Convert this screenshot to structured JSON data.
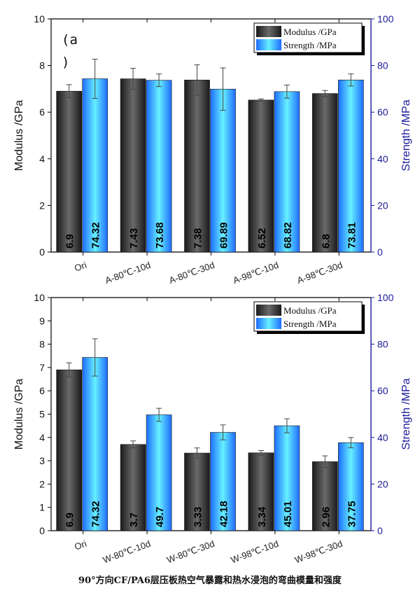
{
  "caption": "90°方向CF/PA6层压板热空气暴露和热水浸泡的弯曲模量和强度",
  "colors": {
    "modulus": "#3a3a3a",
    "strength": "#33ccff",
    "right_axis": "#1a1a9a"
  },
  "chart_data": [
    {
      "type": "bar",
      "panel_label_open": "(a",
      "panel_label_close": ")",
      "categories": [
        "Ori",
        "A-80℃-10d",
        "A-80℃-30d",
        "A-98℃-10d",
        "A-98℃-30d"
      ],
      "ylabel": "Modulus /GPa",
      "y2label": "Strength /MPa",
      "ylim": [
        0,
        10
      ],
      "yticks": [
        0,
        2,
        4,
        6,
        8,
        10
      ],
      "y2lim": [
        0,
        100
      ],
      "y2ticks": [
        0,
        20,
        40,
        60,
        80,
        100
      ],
      "legend_position": "top-right",
      "series": [
        {
          "name": "Modulus /GPa",
          "axis": "left",
          "values": [
            6.9,
            7.43,
            7.38,
            6.52,
            6.8
          ],
          "labels": [
            "6.9",
            "7.43",
            "7.38",
            "6.52",
            "6.8"
          ],
          "errors": [
            0.28,
            0.45,
            0.65,
            0.05,
            0.13
          ]
        },
        {
          "name": "Strength /MPa",
          "axis": "right",
          "values": [
            74.32,
            73.68,
            69.89,
            68.82,
            73.81
          ],
          "labels": [
            "74.32",
            "73.68",
            "69.89",
            "68.82",
            "73.81"
          ],
          "errors": [
            8.4,
            2.7,
            9.1,
            2.8,
            2.6
          ]
        }
      ]
    },
    {
      "type": "bar",
      "categories": [
        "Ori",
        "W-80℃-10d",
        "W-80℃-30d",
        "W-98℃-10d",
        "W-98℃-30d"
      ],
      "ylabel": "Modulus /GPa",
      "y2label": "Strength /MPa",
      "ylim": [
        0,
        10
      ],
      "yticks": [
        0,
        1,
        2,
        3,
        4,
        5,
        6,
        7,
        8,
        9,
        10
      ],
      "y2lim": [
        0,
        100
      ],
      "y2ticks": [
        0,
        20,
        40,
        60,
        80,
        100
      ],
      "legend_position": "top-right",
      "series": [
        {
          "name": "Modulus /GPa",
          "axis": "left",
          "values": [
            6.9,
            3.7,
            3.33,
            3.34,
            2.96
          ],
          "labels": [
            "6.9",
            "3.7",
            "3.33",
            "3.34",
            "2.96"
          ],
          "errors": [
            0.3,
            0.15,
            0.22,
            0.1,
            0.25
          ]
        },
        {
          "name": "Strength /MPa",
          "axis": "right",
          "values": [
            74.32,
            49.7,
            42.18,
            45.01,
            37.75
          ],
          "labels": [
            "74.32",
            "49.7",
            "42.18",
            "45.01",
            "37.75"
          ],
          "errors": [
            8.0,
            2.8,
            3.2,
            3.0,
            2.2
          ]
        }
      ]
    }
  ]
}
